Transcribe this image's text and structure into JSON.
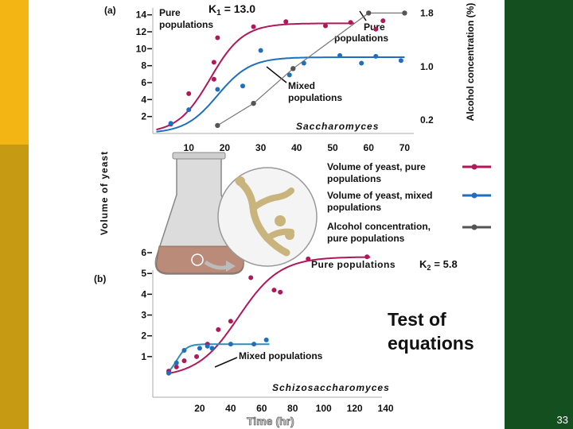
{
  "slide": {
    "number": "33"
  },
  "legend": {
    "items": [
      {
        "label_line1": "Volume of yeast, pure",
        "label_line2": "populations",
        "color": "#b0185a"
      },
      {
        "label_line1": "Volume of yeast, mixed",
        "label_line2": "populations",
        "color": "#1e6fc0"
      },
      {
        "label_line1": "Alcohol concentration,",
        "label_line2": "pure populations",
        "color": "#555555"
      }
    ]
  },
  "colors": {
    "pure": "#b0185a",
    "mixed": "#1e6fc0",
    "alcohol": "#555555",
    "mixed_fit_b": "#2c8fb8"
  },
  "test_of_equations": {
    "line1": "Test of",
    "line2": "equations"
  },
  "shared_ylabel": "Volume of yeast",
  "chart_data": [
    {
      "panel_label": "(a)",
      "type": "scatter",
      "title": "Saccharomyces",
      "xlabel": "",
      "x_ticks": [
        "10",
        "20",
        "30",
        "40",
        "50",
        "60",
        "70"
      ],
      "xlim": [
        0,
        75
      ],
      "y_ticks": [
        "2",
        "4",
        "6",
        "8",
        "10",
        "12",
        "14"
      ],
      "ylim": [
        0,
        15
      ],
      "y2label": "Alcohol concentration (%)",
      "y2_ticks": [
        "0.2",
        "1.0",
        "1.8"
      ],
      "y2lim": [
        0,
        1.9
      ],
      "annotations": {
        "k": "K",
        "k_sub": "1",
        "k_value": "= 13.0",
        "pure_left_line1": "Pure",
        "pure_left_line2": "populations",
        "pure_right_line1": "Pure",
        "pure_right_line2": "populations",
        "mixed_line1": "Mixed",
        "mixed_line2": "populations"
      },
      "series": [
        {
          "name": "Volume of yeast, pure populations",
          "points": [
            [
              5,
              1.1
            ],
            [
              10,
              4.7
            ],
            [
              17,
              6.4
            ],
            [
              17,
              8.4
            ],
            [
              18,
              11.3
            ],
            [
              28,
              12.6
            ],
            [
              37,
              13.2
            ],
            [
              48,
              12.7
            ],
            [
              55,
              13.1
            ],
            [
              62,
              12.3
            ],
            [
              64,
              13.3
            ]
          ]
        },
        {
          "name": "Volume of yeast, mixed populations",
          "points": [
            [
              5,
              1.2
            ],
            [
              10,
              2.8
            ],
            [
              18,
              5.2
            ],
            [
              25,
              5.6
            ],
            [
              30,
              9.8
            ],
            [
              38,
              6.9
            ],
            [
              42,
              8.3
            ],
            [
              52,
              9.2
            ],
            [
              58,
              8.3
            ],
            [
              62,
              9.1
            ],
            [
              69,
              8.6
            ]
          ]
        },
        {
          "name": "Alcohol concentration, pure populations",
          "points": [
            [
              18,
              0.12
            ],
            [
              28,
              0.45
            ],
            [
              39,
              0.97
            ],
            [
              60,
              1.8
            ],
            [
              70,
              1.8
            ]
          ],
          "axis": "y2"
        }
      ],
      "fits": {
        "pure": {
          "K": 13.0,
          "r": 0.22,
          "x0": 16
        },
        "mixed": {
          "K": 9.0,
          "r": 0.22,
          "x0": 18
        }
      }
    },
    {
      "panel_label": "(b)",
      "type": "scatter",
      "title": "Schizosaccharomyces",
      "xlabel": "Time (hr)",
      "x_ticks": [
        "20",
        "40",
        "60",
        "80",
        "100",
        "120",
        "140"
      ],
      "xlim": [
        0,
        150
      ],
      "y_ticks": [
        "1",
        "2",
        "3",
        "4",
        "5",
        "6"
      ],
      "ylim": [
        0,
        6.5
      ],
      "annotations": {
        "k": "K",
        "k_sub": "2",
        "k_value": "= 5.8",
        "pure_line1": "Pure populations",
        "mixed_line1": "Mixed populations"
      },
      "series": [
        {
          "name": "Volume of yeast, pure populations",
          "points": [
            [
              0,
              0.3
            ],
            [
              5,
              0.5
            ],
            [
              10,
              0.8
            ],
            [
              18,
              1.0
            ],
            [
              25,
              1.6
            ],
            [
              32,
              2.3
            ],
            [
              40,
              2.7
            ],
            [
              53,
              4.8
            ],
            [
              68,
              4.2
            ],
            [
              72,
              4.1
            ],
            [
              90,
              5.7
            ],
            [
              128,
              5.8
            ]
          ]
        },
        {
          "name": "Volume of yeast, mixed populations",
          "points": [
            [
              0,
              0.2
            ],
            [
              5,
              0.7
            ],
            [
              10,
              1.3
            ],
            [
              20,
              1.4
            ],
            [
              25,
              1.5
            ],
            [
              28,
              1.4
            ],
            [
              40,
              1.6
            ],
            [
              55,
              1.6
            ],
            [
              63,
              1.8
            ]
          ]
        }
      ],
      "fits": {
        "pure": {
          "K": 5.8,
          "r": 0.075,
          "x0": 45
        },
        "mixed": {
          "K": 1.6,
          "r": 0.3,
          "x0": 5
        }
      }
    }
  ]
}
